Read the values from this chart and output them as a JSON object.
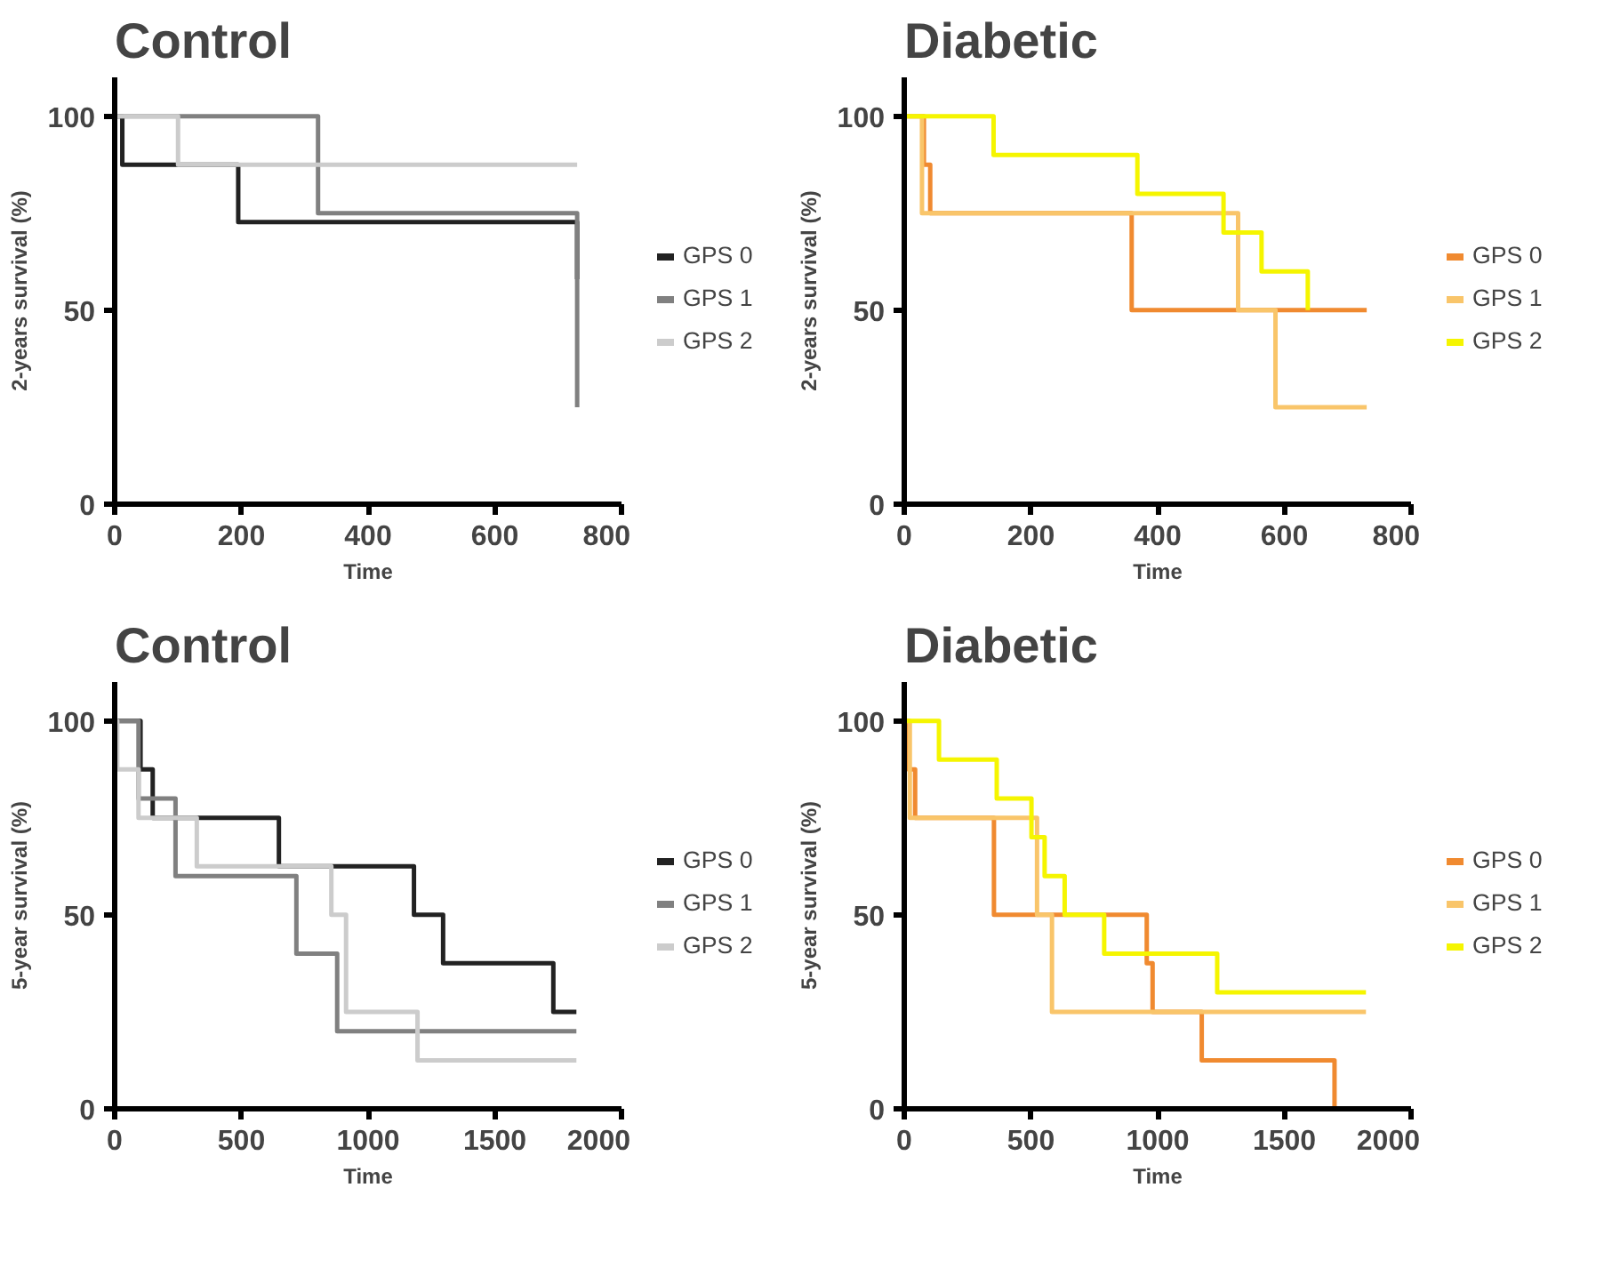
{
  "chart_data": [
    {
      "type": "step",
      "title": "Control",
      "xlabel": "Time",
      "ylabel": "2-years survival (%)",
      "xlim": [
        0,
        800
      ],
      "ylim": [
        0,
        110
      ],
      "xticks": [
        0,
        200,
        400,
        600,
        800
      ],
      "yticks": [
        0,
        50,
        100
      ],
      "grid": false,
      "legend": "right",
      "series": [
        {
          "name": "GPS 0",
          "color": "#222222",
          "x": [
            0,
            12,
            195,
            730
          ],
          "values": [
            100,
            87.5,
            72.7,
            58
          ]
        },
        {
          "name": "GPS 1",
          "color": "#808080",
          "x": [
            0,
            321,
            730
          ],
          "values": [
            100,
            75,
            25
          ]
        },
        {
          "name": "GPS 2",
          "color": "#cccccc",
          "x": [
            0,
            100,
            730
          ],
          "values": [
            100,
            87.5,
            87.5
          ]
        }
      ]
    },
    {
      "type": "step",
      "title": "Diabetic",
      "xlabel": "Time",
      "ylabel": "2-years survival (%)",
      "xlim": [
        0,
        800
      ],
      "ylim": [
        0,
        110
      ],
      "xticks": [
        0,
        200,
        400,
        600,
        800
      ],
      "yticks": [
        0,
        50,
        100
      ],
      "grid": false,
      "legend": "right",
      "series": [
        {
          "name": "GPS 0",
          "color": "#f08a30",
          "x": [
            0,
            31,
            41,
            359,
            730
          ],
          "values": [
            100,
            87.5,
            75,
            50,
            50
          ]
        },
        {
          "name": "GPS 1",
          "color": "#f9c56a",
          "x": [
            0,
            28,
            527,
            586,
            730
          ],
          "values": [
            100,
            75,
            50,
            25,
            25
          ]
        },
        {
          "name": "GPS 2",
          "color": "#f5f500",
          "x": [
            0,
            141,
            368,
            504,
            564,
            637
          ],
          "values": [
            100,
            90,
            80,
            70,
            60,
            50
          ]
        }
      ]
    },
    {
      "type": "step",
      "title": "Control",
      "xlabel": "Time",
      "ylabel": "5-year survival (%)",
      "xlim": [
        0,
        2000
      ],
      "ylim": [
        0,
        110
      ],
      "xticks": [
        0,
        500,
        1000,
        1500,
        2000
      ],
      "yticks": [
        0,
        50,
        100
      ],
      "grid": false,
      "legend": "right",
      "series": [
        {
          "name": "GPS 0",
          "color": "#222222",
          "x": [
            0,
            102,
            150,
            648,
            1181,
            1296,
            1731,
            1822
          ],
          "values": [
            100,
            87.5,
            75,
            62.5,
            50,
            37.5,
            25,
            25
          ]
        },
        {
          "name": "GPS 1",
          "color": "#808080",
          "x": [
            0,
            94,
            240,
            717,
            878,
            1822
          ],
          "values": [
            100,
            80,
            60,
            40,
            20,
            20
          ]
        },
        {
          "name": "GPS 2",
          "color": "#cccccc",
          "x": [
            0,
            10,
            94,
            324,
            855,
            913,
            1195,
            1822
          ],
          "values": [
            100,
            87.5,
            75,
            62.5,
            50,
            25,
            12.5,
            12.5
          ]
        }
      ]
    },
    {
      "type": "step",
      "title": "Diabetic",
      "xlabel": "Time",
      "ylabel": "5-year survival (%)",
      "xlim": [
        0,
        2000
      ],
      "ylim": [
        0,
        110
      ],
      "xticks": [
        0,
        500,
        1000,
        1500,
        2000
      ],
      "yticks": [
        0,
        50,
        100
      ],
      "grid": false,
      "legend": "right",
      "series": [
        {
          "name": "GPS 0",
          "color": "#f08a30",
          "x": [
            0,
            17,
            43,
            354,
            957,
            980,
            1174,
            1698
          ],
          "values": [
            100,
            87.5,
            75,
            50,
            37.5,
            25,
            12.5,
            0
          ]
        },
        {
          "name": "GPS 1",
          "color": "#f9c56a",
          "x": [
            0,
            22,
            524,
            583,
            1822
          ],
          "values": [
            100,
            75,
            50,
            25,
            25
          ]
        },
        {
          "name": "GPS 2",
          "color": "#f5f500",
          "x": [
            0,
            137,
            365,
            502,
            554,
            633,
            789,
            1235,
            1822
          ],
          "values": [
            100,
            90,
            80,
            70,
            60,
            50,
            40,
            30,
            30
          ]
        }
      ]
    }
  ]
}
